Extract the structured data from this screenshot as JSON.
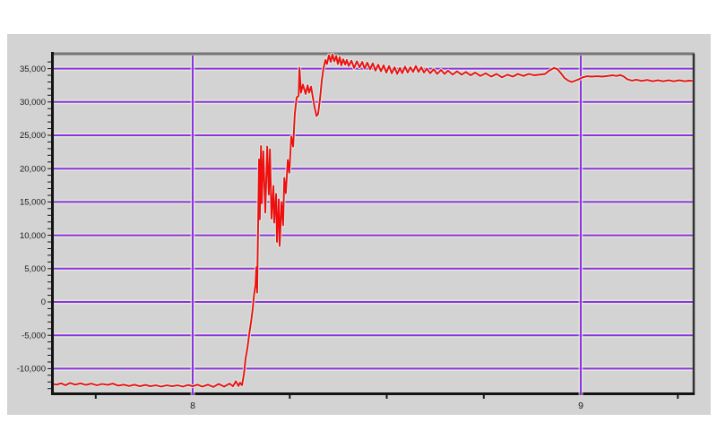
{
  "colors": {
    "page_bg": "#ffffff",
    "panel_bg": "#d3d3d3",
    "frame_top": "#757575",
    "frame_left": "#141414",
    "frame_bottom": "#141414",
    "frame_right": "#333333",
    "tick_color": "#1a1a1a"
  },
  "chart_data": {
    "type": "line",
    "title": "",
    "xlabel": "",
    "ylabel": "",
    "legend": "none",
    "grid": {
      "on": true,
      "color": "#8c31e8",
      "halo_color": "#e9f2d4"
    },
    "x_axis": {
      "min": 7.64,
      "max": 9.29,
      "major_ticks": [
        8,
        9
      ],
      "major_tick_labels": [
        "8",
        "9"
      ],
      "minor_ticks": [
        7.75,
        8.25,
        8.5,
        8.75,
        9.25
      ]
    },
    "y_axis": {
      "min": -13575,
      "max": 36960,
      "minor_tick_step": 1000,
      "ticks": [
        {
          "value": 35000,
          "label": "35,000"
        },
        {
          "value": 30000,
          "label": "30,000"
        },
        {
          "value": 25000,
          "label": "25,000"
        },
        {
          "value": 20000,
          "label": "20,000"
        },
        {
          "value": 15000,
          "label": "15,000"
        },
        {
          "value": 10000,
          "label": "10,000"
        },
        {
          "value": 5000,
          "label": "5,000"
        },
        {
          "value": 0,
          "label": "0"
        },
        {
          "value": -5000,
          "label": "-5,000"
        },
        {
          "value": -10000,
          "label": "-10,000"
        }
      ]
    },
    "series": [
      {
        "color": "#ef0f0f",
        "halo_color": "#d8efe9",
        "points": [
          [
            7.635,
            -12250
          ],
          [
            7.649,
            -12400
          ],
          [
            7.661,
            -12200
          ],
          [
            7.672,
            -12500
          ],
          [
            7.684,
            -12150
          ],
          [
            7.697,
            -12400
          ],
          [
            7.711,
            -12200
          ],
          [
            7.725,
            -12450
          ],
          [
            7.739,
            -12250
          ],
          [
            7.753,
            -12500
          ],
          [
            7.767,
            -12300
          ],
          [
            7.781,
            -12450
          ],
          [
            7.794,
            -12250
          ],
          [
            7.808,
            -12550
          ],
          [
            7.822,
            -12400
          ],
          [
            7.836,
            -12600
          ],
          [
            7.85,
            -12400
          ],
          [
            7.864,
            -12650
          ],
          [
            7.878,
            -12450
          ],
          [
            7.891,
            -12650
          ],
          [
            7.905,
            -12500
          ],
          [
            7.919,
            -12700
          ],
          [
            7.933,
            -12500
          ],
          [
            7.947,
            -12650
          ],
          [
            7.961,
            -12500
          ],
          [
            7.975,
            -12700
          ],
          [
            7.988,
            -12450
          ],
          [
            8.0,
            -12650
          ],
          [
            8.012,
            -12400
          ],
          [
            8.025,
            -12700
          ],
          [
            8.039,
            -12400
          ],
          [
            8.053,
            -12750
          ],
          [
            8.067,
            -12300
          ],
          [
            8.081,
            -12700
          ],
          [
            8.095,
            -12250
          ],
          [
            8.104,
            -12650
          ],
          [
            8.111,
            -11900
          ],
          [
            8.118,
            -12600
          ],
          [
            8.122,
            -12100
          ],
          [
            8.127,
            -12500
          ],
          [
            8.132,
            -10800
          ],
          [
            8.136,
            -8600
          ],
          [
            8.141,
            -6900
          ],
          [
            8.146,
            -4700
          ],
          [
            8.15,
            -3100
          ],
          [
            8.155,
            -900
          ],
          [
            8.157,
            500
          ],
          [
            8.159,
            1400
          ],
          [
            8.162,
            2600
          ],
          [
            8.164,
            5200
          ],
          [
            8.166,
            1400
          ],
          [
            8.169,
            13500
          ],
          [
            8.171,
            21400
          ],
          [
            8.173,
            12400
          ],
          [
            8.176,
            23400
          ],
          [
            8.178,
            14800
          ],
          [
            8.182,
            22600
          ],
          [
            8.187,
            13400
          ],
          [
            8.192,
            23300
          ],
          [
            8.196,
            16100
          ],
          [
            8.199,
            22900
          ],
          [
            8.203,
            12500
          ],
          [
            8.208,
            17400
          ],
          [
            8.21,
            11900
          ],
          [
            8.215,
            16200
          ],
          [
            8.217,
            9000
          ],
          [
            8.222,
            15400
          ],
          [
            8.224,
            8400
          ],
          [
            8.229,
            15000
          ],
          [
            8.233,
            11500
          ],
          [
            8.236,
            18600
          ],
          [
            8.24,
            16300
          ],
          [
            8.245,
            21300
          ],
          [
            8.249,
            19400
          ],
          [
            8.254,
            24800
          ],
          [
            8.259,
            23300
          ],
          [
            8.263,
            28200
          ],
          [
            8.268,
            30700
          ],
          [
            8.273,
            30900
          ],
          [
            8.275,
            35100
          ],
          [
            8.279,
            31400
          ],
          [
            8.284,
            32600
          ],
          [
            8.291,
            31200
          ],
          [
            8.296,
            32500
          ],
          [
            8.3,
            31400
          ],
          [
            8.305,
            32300
          ],
          [
            8.309,
            30900
          ],
          [
            8.314,
            29200
          ],
          [
            8.319,
            27900
          ],
          [
            8.323,
            28200
          ],
          [
            8.328,
            30400
          ],
          [
            8.333,
            33400
          ],
          [
            8.337,
            35000
          ],
          [
            8.342,
            36300
          ],
          [
            8.346,
            35700
          ],
          [
            8.351,
            37000
          ],
          [
            8.356,
            36000
          ],
          [
            8.36,
            37150
          ],
          [
            8.365,
            36100
          ],
          [
            8.37,
            36900
          ],
          [
            8.374,
            35700
          ],
          [
            8.379,
            36700
          ],
          [
            8.383,
            35500
          ],
          [
            8.388,
            36400
          ],
          [
            8.393,
            35600
          ],
          [
            8.397,
            36300
          ],
          [
            8.402,
            35400
          ],
          [
            8.409,
            36200
          ],
          [
            8.416,
            35100
          ],
          [
            8.423,
            36100
          ],
          [
            8.43,
            35200
          ],
          [
            8.437,
            36000
          ],
          [
            8.443,
            35000
          ],
          [
            8.45,
            35900
          ],
          [
            8.457,
            34900
          ],
          [
            8.464,
            35800
          ],
          [
            8.471,
            34700
          ],
          [
            8.478,
            35600
          ],
          [
            8.485,
            34600
          ],
          [
            8.492,
            35500
          ],
          [
            8.499,
            34400
          ],
          [
            8.506,
            35400
          ],
          [
            8.513,
            34300
          ],
          [
            8.52,
            35200
          ],
          [
            8.527,
            34200
          ],
          [
            8.534,
            35100
          ],
          [
            8.54,
            34300
          ],
          [
            8.547,
            35300
          ],
          [
            8.554,
            34400
          ],
          [
            8.561,
            35200
          ],
          [
            8.568,
            34500
          ],
          [
            8.575,
            35400
          ],
          [
            8.582,
            34500
          ],
          [
            8.589,
            35200
          ],
          [
            8.596,
            34400
          ],
          [
            8.603,
            35000
          ],
          [
            8.612,
            34300
          ],
          [
            8.621,
            34900
          ],
          [
            8.63,
            34200
          ],
          [
            8.64,
            34800
          ],
          [
            8.649,
            34200
          ],
          [
            8.658,
            34700
          ],
          [
            8.67,
            34100
          ],
          [
            8.681,
            34600
          ],
          [
            8.693,
            34100
          ],
          [
            8.704,
            34500
          ],
          [
            8.716,
            34000
          ],
          [
            8.728,
            34400
          ],
          [
            8.741,
            33900
          ],
          [
            8.755,
            34300
          ],
          [
            8.769,
            33800
          ],
          [
            8.783,
            34200
          ],
          [
            8.797,
            33700
          ],
          [
            8.811,
            34100
          ],
          [
            8.825,
            33800
          ],
          [
            8.838,
            34200
          ],
          [
            8.852,
            33900
          ],
          [
            8.866,
            34200
          ],
          [
            8.88,
            34000
          ],
          [
            8.894,
            34100
          ],
          [
            8.908,
            34200
          ],
          [
            8.919,
            34700
          ],
          [
            8.931,
            35100
          ],
          [
            8.94,
            34900
          ],
          [
            8.949,
            34300
          ],
          [
            8.958,
            33600
          ],
          [
            8.968,
            33200
          ],
          [
            8.977,
            33000
          ],
          [
            8.986,
            33200
          ],
          [
            8.995,
            33400
          ],
          [
            9.005,
            33700
          ],
          [
            9.016,
            33850
          ],
          [
            9.028,
            33800
          ],
          [
            9.042,
            33850
          ],
          [
            9.055,
            33800
          ],
          [
            9.069,
            33900
          ],
          [
            9.083,
            34000
          ],
          [
            9.092,
            33900
          ],
          [
            9.102,
            34050
          ],
          [
            9.111,
            33800
          ],
          [
            9.12,
            33400
          ],
          [
            9.132,
            33200
          ],
          [
            9.143,
            33350
          ],
          [
            9.157,
            33150
          ],
          [
            9.171,
            33300
          ],
          [
            9.185,
            33100
          ],
          [
            9.199,
            33250
          ],
          [
            9.212,
            33100
          ],
          [
            9.226,
            33250
          ],
          [
            9.24,
            33100
          ],
          [
            9.254,
            33250
          ],
          [
            9.268,
            33100
          ],
          [
            9.279,
            33200
          ],
          [
            9.289,
            33150
          ]
        ]
      }
    ]
  }
}
